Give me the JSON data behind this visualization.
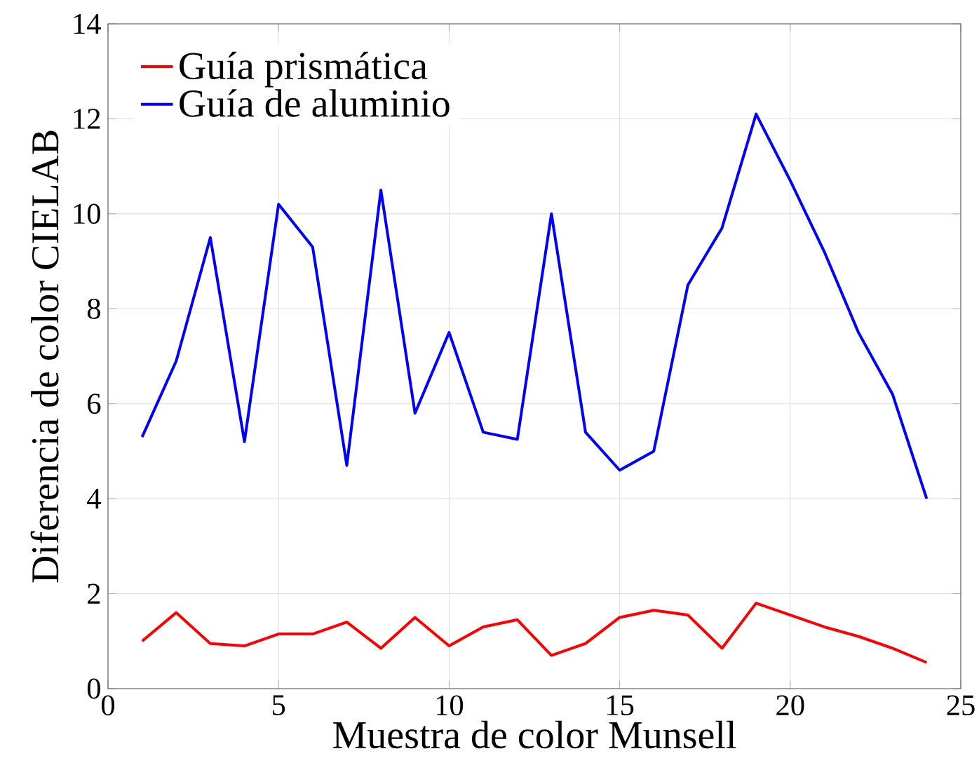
{
  "chart_data": {
    "type": "line",
    "xlabel": "Muestra de color Munsell",
    "ylabel": "Diferencia de color CIELAB",
    "x": [
      1,
      2,
      3,
      4,
      5,
      6,
      7,
      8,
      9,
      10,
      11,
      12,
      13,
      14,
      15,
      16,
      17,
      18,
      19,
      20,
      21,
      22,
      23,
      24
    ],
    "series": [
      {
        "name": "Guía prismática",
        "color": "#ff0000",
        "values": [
          1.0,
          1.6,
          0.95,
          0.9,
          1.15,
          1.15,
          1.4,
          0.85,
          1.5,
          0.9,
          1.3,
          1.45,
          0.7,
          0.95,
          1.5,
          1.65,
          1.55,
          0.85,
          1.8,
          1.55,
          1.3,
          1.1,
          0.85,
          0.55
        ]
      },
      {
        "name": "Guía de aluminio",
        "color": "#0000ff",
        "values": [
          5.3,
          6.9,
          9.5,
          5.2,
          10.2,
          9.3,
          4.7,
          10.5,
          5.8,
          7.5,
          5.4,
          5.25,
          10.0,
          5.4,
          4.6,
          5.0,
          8.5,
          9.7,
          12.1,
          10.7,
          9.2,
          7.5,
          6.2,
          4.0
        ]
      }
    ],
    "xlim": [
      0,
      25
    ],
    "xticks": [
      0,
      5,
      10,
      15,
      20,
      25
    ],
    "ylim": [
      0,
      14
    ],
    "yticks": [
      0,
      2,
      4,
      6,
      8,
      10,
      12,
      14
    ],
    "grid": true,
    "legend": "top left",
    "marker": "none",
    "line_style": "solid"
  }
}
